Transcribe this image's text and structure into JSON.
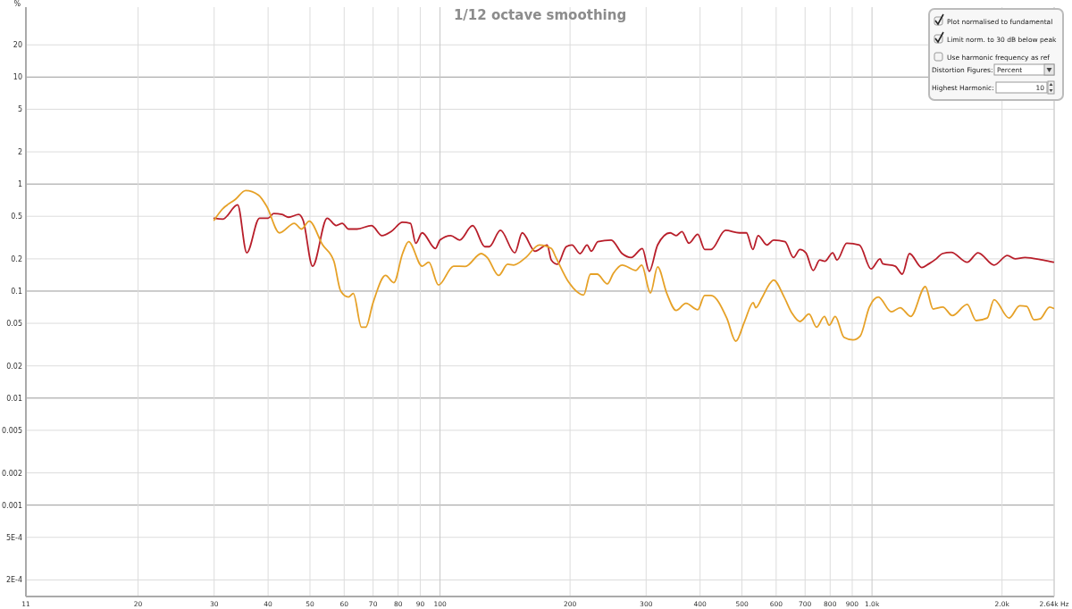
{
  "chart_data": {
    "type": "line",
    "title": "1/12 octave smoothing",
    "ylabel": "%",
    "log": "xy",
    "grid": true,
    "marker": "none",
    "line_style": "solid",
    "xlim": [
      11,
      2640
    ],
    "ylim": [
      0.00014,
      45
    ],
    "xticks": [
      11,
      20,
      30,
      40,
      50,
      60,
      70,
      80,
      90,
      100,
      200,
      300,
      400,
      500,
      600,
      700,
      800,
      900,
      {
        "value": 1000,
        "label": "1.0k"
      },
      {
        "value": 2000,
        "label": "2.0k"
      },
      {
        "value": 2640,
        "label": "2.64k Hz"
      }
    ],
    "yticks": [
      20,
      10,
      5,
      2,
      1,
      0.5,
      0.2,
      0.1,
      0.05,
      0.02,
      0.01,
      0.005,
      0.002,
      0.001,
      {
        "value": 0.0005,
        "label": "5E-4"
      },
      {
        "value": 0.0002,
        "label": "2E-4"
      }
    ],
    "annotations": [
      "Plot normalised to fundamental",
      "Limit norm. to 30 dB below peak",
      "Use harmonic frequency as ref",
      "Distortion Figures:",
      "Percent",
      "Highest Harmonic:",
      "10"
    ],
    "series": [
      {
        "color": "#b81e2a",
        "x": [
          30,
          31.4,
          34,
          35.7,
          38.2,
          40,
          41.2,
          43.1,
          44.6,
          47.1,
          48.2,
          50.7,
          54.8,
          57.5,
          59.4,
          61.4,
          64.3,
          69.4,
          73.4,
          77.1,
          81.9,
          85.4,
          87.9,
          90.9,
          97.6,
          100,
          105.9,
          111,
          119,
          127,
          130,
          138,
          149,
          155,
          166,
          177,
          181,
          187,
          196,
          202,
          211,
          219,
          224,
          232,
          249,
          264,
          277,
          294,
          305,
          319,
          341,
          352,
          363,
          377,
          395,
          410,
          424,
          458,
          493,
          512,
          530,
          545,
          571,
          592,
          629,
          658,
          681,
          703,
          731,
          757,
          778,
          811,
          830,
          874,
          935,
          995,
          1044,
          1059,
          1132,
          1175,
          1221,
          1304,
          1355,
          1408,
          1455,
          1526,
          1661,
          1760,
          1917,
          2058,
          2145,
          2260,
          2483,
          2630
        ],
        "values": [
          0.48,
          0.47,
          0.64,
          0.228,
          0.48,
          0.48,
          0.53,
          0.52,
          0.49,
          0.52,
          0.46,
          0.171,
          0.48,
          0.41,
          0.43,
          0.38,
          0.38,
          0.41,
          0.33,
          0.36,
          0.44,
          0.43,
          0.28,
          0.35,
          0.25,
          0.3,
          0.33,
          0.3,
          0.41,
          0.26,
          0.26,
          0.37,
          0.228,
          0.35,
          0.236,
          0.27,
          0.195,
          0.178,
          0.26,
          0.27,
          0.224,
          0.27,
          0.236,
          0.29,
          0.3,
          0.224,
          0.206,
          0.25,
          0.153,
          0.27,
          0.35,
          0.33,
          0.36,
          0.28,
          0.34,
          0.245,
          0.245,
          0.37,
          0.35,
          0.35,
          0.245,
          0.33,
          0.27,
          0.3,
          0.29,
          0.206,
          0.245,
          0.228,
          0.156,
          0.195,
          0.19,
          0.228,
          0.195,
          0.28,
          0.27,
          0.161,
          0.2,
          0.18,
          0.171,
          0.144,
          0.224,
          0.166,
          0.18,
          0.2,
          0.224,
          0.23,
          0.186,
          0.228,
          0.175,
          0.215,
          0.2,
          0.206,
          0.195,
          0.186
        ]
      },
      {
        "color": "#e6a127",
        "x": [
          30,
          31.3,
          33.6,
          35.5,
          38,
          39.7,
          42.5,
          46,
          47.8,
          49.8,
          53.5,
          56.8,
          58.9,
          61.4,
          63,
          65.8,
          67.3,
          70,
          74.8,
          78.2,
          81.9,
          84.6,
          90.9,
          94.2,
          99.2,
          107.5,
          114.5,
          124.5,
          128.6,
          136.7,
          143.4,
          148,
          158,
          169.8,
          181,
          185.5,
          198.6,
          215,
          223,
          231,
          244,
          252,
          264,
          284,
          293,
          307,
          319,
          335,
          352,
          371,
          395,
          410,
          424,
          461,
          484,
          507,
          531,
          538,
          556,
          577,
          592,
          626,
          653,
          681,
          715,
          744,
          776,
          796,
          822,
          861,
          904,
          939,
          986,
          1034,
          1109,
          1162,
          1229,
          1329,
          1385,
          1458,
          1535,
          1661,
          1742,
          1848,
          1917,
          2076,
          2198,
          2282,
          2370,
          2449,
          2578,
          2630
        ],
        "values": [
          0.46,
          0.58,
          0.72,
          0.87,
          0.79,
          0.62,
          0.35,
          0.43,
          0.38,
          0.45,
          0.27,
          0.19,
          0.1,
          0.088,
          0.095,
          0.046,
          0.046,
          0.078,
          0.14,
          0.12,
          0.224,
          0.29,
          0.171,
          0.186,
          0.114,
          0.171,
          0.17,
          0.224,
          0.206,
          0.14,
          0.178,
          0.175,
          0.206,
          0.27,
          0.25,
          0.206,
          0.121,
          0.092,
          0.144,
          0.144,
          0.117,
          0.147,
          0.175,
          0.156,
          0.175,
          0.096,
          0.168,
          0.095,
          0.066,
          0.077,
          0.067,
          0.091,
          0.091,
          0.056,
          0.034,
          0.052,
          0.078,
          0.07,
          0.086,
          0.114,
          0.127,
          0.088,
          0.062,
          0.052,
          0.061,
          0.046,
          0.058,
          0.048,
          0.058,
          0.037,
          0.035,
          0.038,
          0.071,
          0.088,
          0.064,
          0.07,
          0.058,
          0.11,
          0.068,
          0.071,
          0.059,
          0.075,
          0.053,
          0.056,
          0.083,
          0.056,
          0.073,
          0.072,
          0.054,
          0.055,
          0.071,
          0.069
        ]
      }
    ]
  }
}
